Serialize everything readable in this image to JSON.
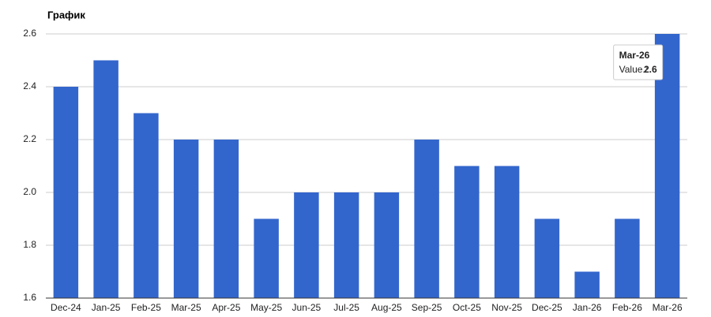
{
  "chart_data": {
    "type": "bar",
    "title": "График",
    "categories": [
      "Dec-24",
      "Jan-25",
      "Feb-25",
      "Mar-25",
      "Apr-25",
      "May-25",
      "Jun-25",
      "Jul-25",
      "Aug-25",
      "Sep-25",
      "Oct-25",
      "Nov-25",
      "Dec-25",
      "Jan-26",
      "Feb-26",
      "Mar-26"
    ],
    "values": [
      2.4,
      2.5,
      2.3,
      2.2,
      2.2,
      1.9,
      2.0,
      2.0,
      2.0,
      2.2,
      2.1,
      2.1,
      1.9,
      1.7,
      1.9,
      2.6
    ],
    "color": "#3366cc",
    "ylim": [
      1.6,
      2.6
    ],
    "yticks": [
      1.6,
      1.8,
      {
        "value": 2.0,
        "label": "2.0"
      },
      2.2,
      2.4,
      2.6
    ],
    "grid": true,
    "tooltip": {
      "index": 15,
      "label": "Value.:"
    }
  }
}
